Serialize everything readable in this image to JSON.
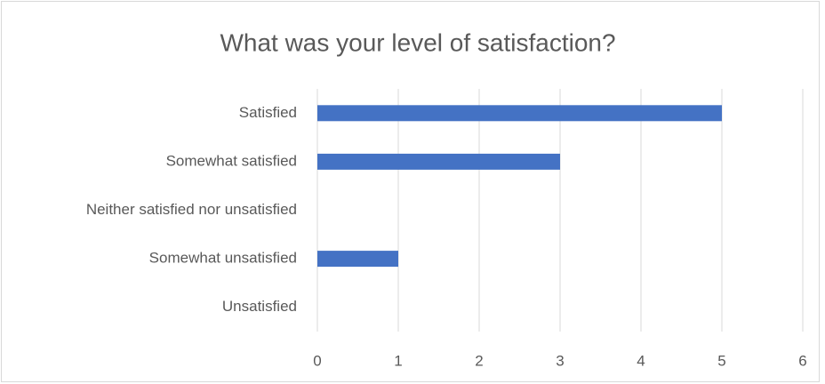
{
  "chart_data": {
    "type": "bar",
    "orientation": "horizontal",
    "title": "What was your level of satisfaction?",
    "categories": [
      "Satisfied",
      "Somewhat satisfied",
      "Neither satisfied nor unsatisfied",
      "Somewhat unsatisfied",
      "Unsatisfied"
    ],
    "values": [
      5,
      3,
      0,
      1,
      0
    ],
    "color": "#4472c4",
    "xlim": [
      0,
      6
    ],
    "xticks": [
      0,
      1,
      2,
      3,
      4,
      5,
      6
    ],
    "grid": true
  }
}
